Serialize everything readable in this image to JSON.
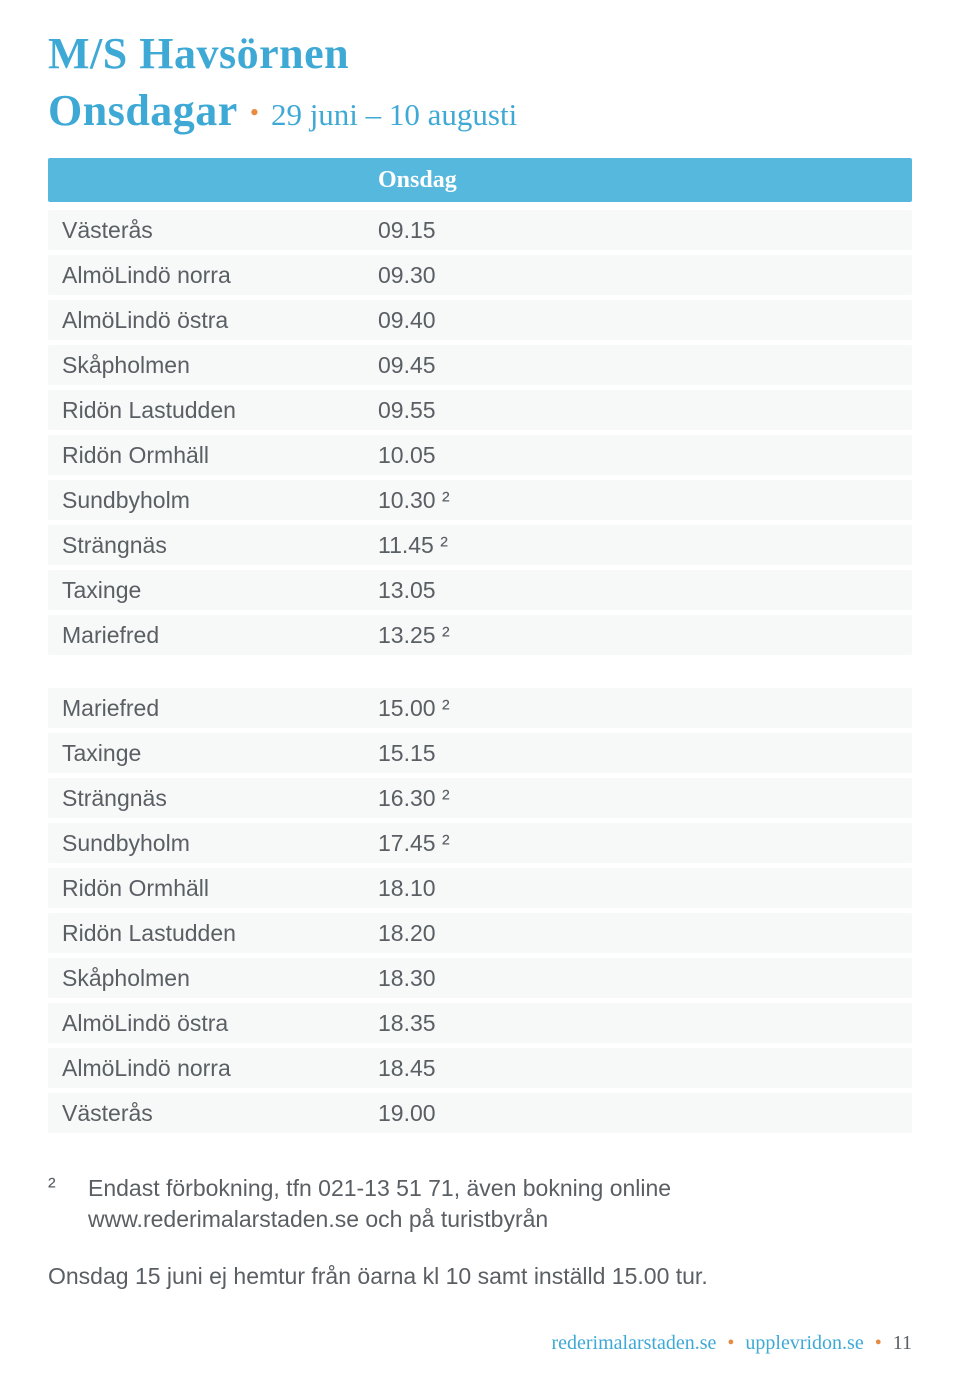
{
  "header": {
    "title": "M/S Havsörnen",
    "subtitle": "Onsdagar",
    "daterange": "29 juni – 10 augusti",
    "column_label": "Onsdag"
  },
  "colors": {
    "accent": "#3fa9d6",
    "header_bar": "#56b8dd",
    "row_bg": "#f7f8f8",
    "text": "#5a5f64",
    "bullet": "#e88b42"
  },
  "outbound": [
    {
      "stop": "Västerås",
      "time": "09.15"
    },
    {
      "stop": "AlmöLindö norra",
      "time": "09.30"
    },
    {
      "stop": "AlmöLindö östra",
      "time": "09.40"
    },
    {
      "stop": "Skåpholmen",
      "time": "09.45"
    },
    {
      "stop": "Ridön Lastudden",
      "time": "09.55"
    },
    {
      "stop": "Ridön Ormhäll",
      "time": "10.05"
    },
    {
      "stop": "Sundbyholm",
      "time": "10.30 ²"
    },
    {
      "stop": "Strängnäs",
      "time": "11.45 ²"
    },
    {
      "stop": "Taxinge",
      "time": "13.05"
    },
    {
      "stop": "Mariefred",
      "time": "13.25 ²"
    }
  ],
  "return": [
    {
      "stop": "Mariefred",
      "time": "15.00 ²"
    },
    {
      "stop": "Taxinge",
      "time": "15.15"
    },
    {
      "stop": "Strängnäs",
      "time": "16.30 ²"
    },
    {
      "stop": "Sundbyholm",
      "time": "17.45 ²"
    },
    {
      "stop": "Ridön Ormhäll",
      "time": "18.10"
    },
    {
      "stop": "Ridön Lastudden",
      "time": "18.20"
    },
    {
      "stop": "Skåpholmen",
      "time": "18.30"
    },
    {
      "stop": "AlmöLindö östra",
      "time": "18.35"
    },
    {
      "stop": "AlmöLindö norra",
      "time": "18.45"
    },
    {
      "stop": "Västerås",
      "time": "19.00"
    }
  ],
  "footnotes": {
    "marker": "²",
    "text1": "Endast förbokning, tfn 021-13 51 71, även bokning online www.rederimalarstaden.se och på turistbyrån",
    "text2": "Onsdag 15 juni ej hemtur från öarna kl 10 samt inställd 15.00 tur."
  },
  "footer": {
    "site1": "rederimalarstaden.se",
    "site2": "upplevridon.se",
    "page": "11"
  }
}
